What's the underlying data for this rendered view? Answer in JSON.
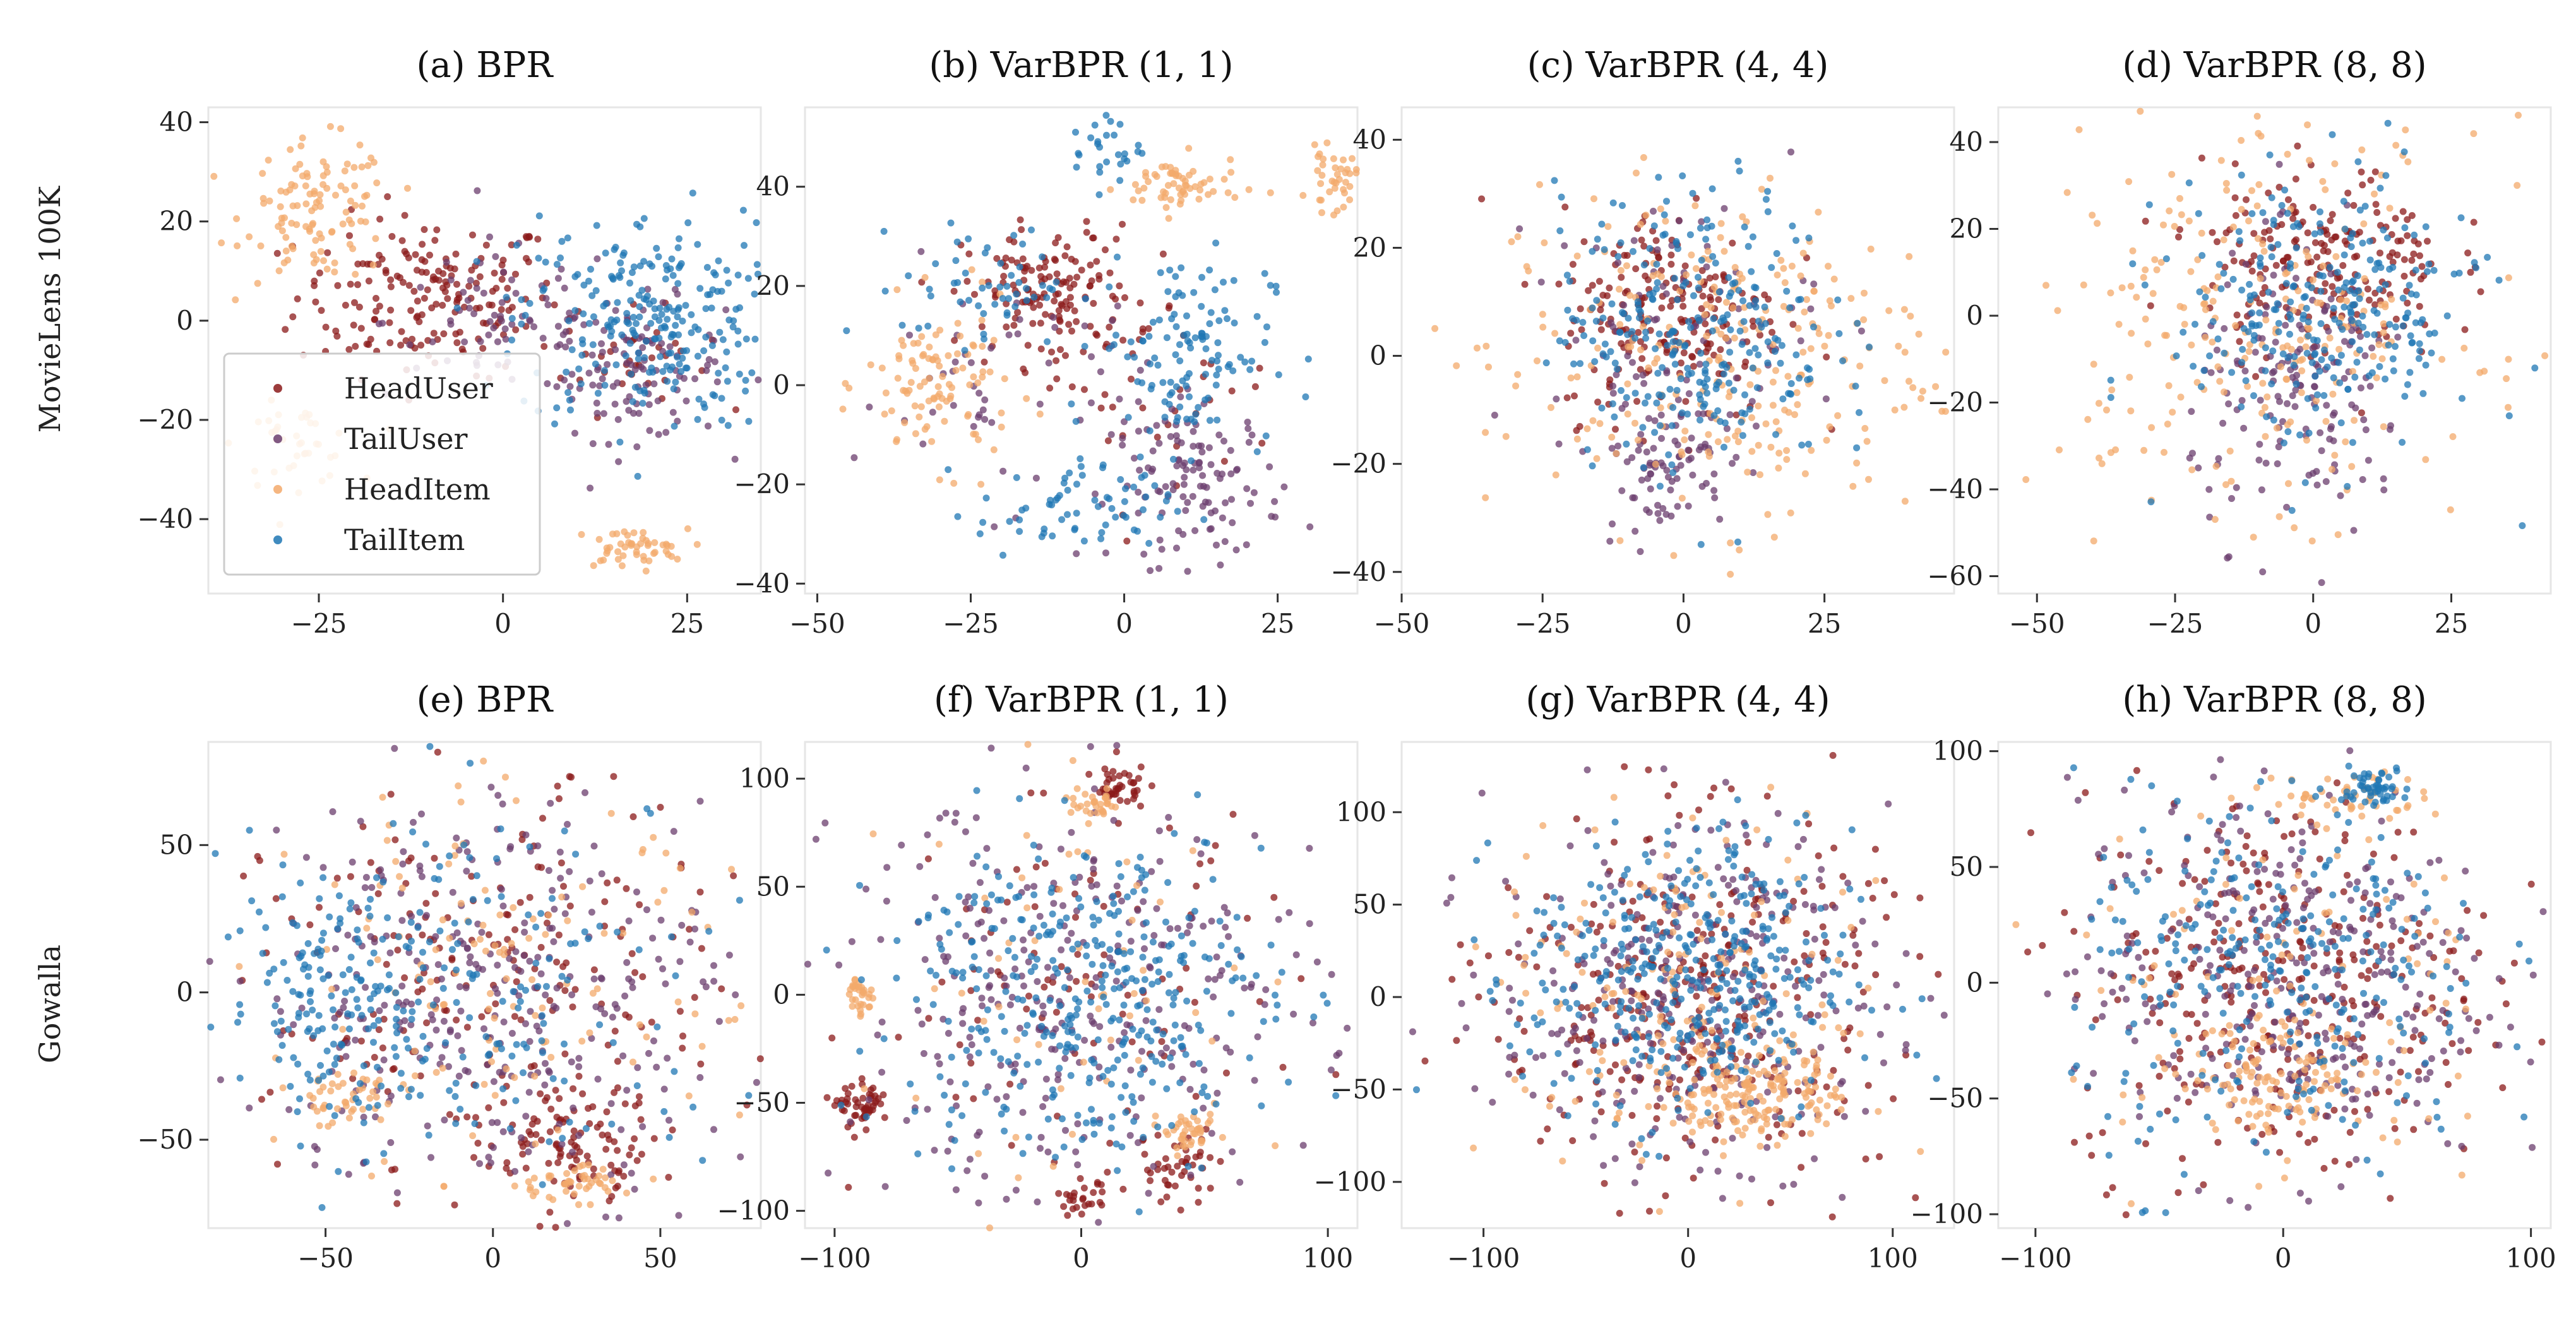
{
  "figure": {
    "row_labels": [
      "MovieLens 100K",
      "Gowalla"
    ],
    "legend": {
      "location": "lower left of panel (a)",
      "entries": [
        {
          "name": "HeadUser",
          "color": "#8b1a1a"
        },
        {
          "name": "TailUser",
          "color": "#6b3d6e"
        },
        {
          "name": "HeadItem",
          "color": "#f3a96b"
        },
        {
          "name": "TailItem",
          "color": "#1f77b4"
        }
      ]
    }
  },
  "chart_data": [
    {
      "type": "scatter",
      "title": "(a) BPR",
      "row": "MovieLens 100K",
      "xlim": [
        -40,
        35
      ],
      "ylim": [
        -55,
        43
      ],
      "xticks": [
        -25,
        0,
        25
      ],
      "yticks": [
        -40,
        -20,
        0,
        20,
        40
      ],
      "series": [
        {
          "name": "HeadUser",
          "color": "#8b1a1a",
          "n": 220,
          "clusters": [
            {
              "cx": -10,
              "cy": 5,
              "sx": 9,
              "sy": 8,
              "w": 0.85
            },
            {
              "cx": 18,
              "cy": -8,
              "sx": 5,
              "sy": 5,
              "w": 0.15
            }
          ]
        },
        {
          "name": "TailUser",
          "color": "#6b3d6e",
          "n": 170,
          "clusters": [
            {
              "cx": 18,
              "cy": -10,
              "sx": 6,
              "sy": 7,
              "w": 0.6
            },
            {
              "cx": 0,
              "cy": 0,
              "sx": 8,
              "sy": 8,
              "w": 0.4
            }
          ]
        },
        {
          "name": "HeadItem",
          "color": "#f3a96b",
          "n": 200,
          "clusters": [
            {
              "cx": -25,
              "cy": 22,
              "sx": 5,
              "sy": 7,
              "w": 0.55
            },
            {
              "cx": -28,
              "cy": -25,
              "sx": 4,
              "sy": 4,
              "w": 0.2
            },
            {
              "cx": 17,
              "cy": -46,
              "sx": 4,
              "sy": 2,
              "w": 0.25
            }
          ]
        },
        {
          "name": "TailItem",
          "color": "#1f77b4",
          "n": 260,
          "clusters": [
            {
              "cx": 20,
              "cy": 0,
              "sx": 9,
              "sy": 11,
              "w": 1.0
            }
          ]
        }
      ]
    },
    {
      "type": "scatter",
      "title": "(b) VarBPR (1, 1)",
      "row": "MovieLens 100K",
      "xlim": [
        -52,
        38
      ],
      "ylim": [
        -42,
        56
      ],
      "xticks": [
        -50,
        -25,
        0,
        25
      ],
      "yticks": [
        -40,
        -20,
        0,
        20,
        40
      ],
      "series": [
        {
          "name": "HeadUser",
          "color": "#8b1a1a",
          "n": 180,
          "clusters": [
            {
              "cx": -12,
              "cy": 18,
              "sx": 7,
              "sy": 7,
              "w": 0.8
            },
            {
              "cx": 5,
              "cy": 0,
              "sx": 10,
              "sy": 10,
              "w": 0.2
            }
          ]
        },
        {
          "name": "TailUser",
          "color": "#6b3d6e",
          "n": 170,
          "clusters": [
            {
              "cx": 12,
              "cy": -20,
              "sx": 7,
              "sy": 8,
              "w": 0.7
            },
            {
              "cx": -20,
              "cy": 0,
              "sx": 12,
              "sy": 12,
              "w": 0.3
            }
          ]
        },
        {
          "name": "HeadItem",
          "color": "#f3a96b",
          "n": 200,
          "clusters": [
            {
              "cx": -30,
              "cy": 0,
              "sx": 6,
              "sy": 8,
              "w": 0.5
            },
            {
              "cx": 9,
              "cy": 40,
              "sx": 5,
              "sy": 3,
              "w": 0.3
            },
            {
              "cx": 34,
              "cy": 41,
              "sx": 2,
              "sy": 3,
              "w": 0.2
            }
          ]
        },
        {
          "name": "TailItem",
          "color": "#1f77b4",
          "n": 270,
          "clusters": [
            {
              "cx": 10,
              "cy": 8,
              "sx": 7,
              "sy": 10,
              "w": 0.45
            },
            {
              "cx": -8,
              "cy": -25,
              "sx": 8,
              "sy": 5,
              "w": 0.25
            },
            {
              "cx": -22,
              "cy": 20,
              "sx": 7,
              "sy": 6,
              "w": 0.2
            },
            {
              "cx": -3,
              "cy": 48,
              "sx": 3,
              "sy": 4,
              "w": 0.1
            }
          ]
        }
      ]
    },
    {
      "type": "scatter",
      "title": "(c) VarBPR (4, 4)",
      "row": "MovieLens 100K",
      "xlim": [
        -50,
        48
      ],
      "ylim": [
        -44,
        46
      ],
      "xticks": [
        -50,
        -25,
        0,
        25
      ],
      "yticks": [
        -40,
        -20,
        0,
        20,
        40
      ],
      "series": [
        {
          "name": "HeadUser",
          "color": "#8b1a1a",
          "n": 200,
          "clusters": [
            {
              "cx": -2,
              "cy": 8,
              "sx": 10,
              "sy": 10,
              "w": 1.0
            }
          ]
        },
        {
          "name": "TailUser",
          "color": "#6b3d6e",
          "n": 160,
          "clusters": [
            {
              "cx": -4,
              "cy": -20,
              "sx": 6,
              "sy": 6,
              "w": 0.5
            },
            {
              "cx": 0,
              "cy": 5,
              "sx": 12,
              "sy": 12,
              "w": 0.5
            }
          ]
        },
        {
          "name": "HeadItem",
          "color": "#f3a96b",
          "n": 260,
          "clusters": [
            {
              "cx": 5,
              "cy": 0,
              "sx": 20,
              "sy": 16,
              "w": 1.0
            }
          ]
        },
        {
          "name": "TailItem",
          "color": "#1f77b4",
          "n": 260,
          "clusters": [
            {
              "cx": 2,
              "cy": 5,
              "sx": 12,
              "sy": 13,
              "w": 1.0
            }
          ]
        }
      ]
    },
    {
      "type": "scatter",
      "title": "(d) VarBPR (8, 8)",
      "row": "MovieLens 100K",
      "xlim": [
        -57,
        43
      ],
      "ylim": [
        -64,
        48
      ],
      "xticks": [
        -50,
        -25,
        0,
        25
      ],
      "yticks": [
        -60,
        -40,
        -20,
        0,
        20,
        40
      ],
      "series": [
        {
          "name": "HeadUser",
          "color": "#8b1a1a",
          "n": 200,
          "clusters": [
            {
              "cx": 2,
              "cy": 12,
              "sx": 11,
              "sy": 11,
              "w": 1.0
            }
          ]
        },
        {
          "name": "TailUser",
          "color": "#6b3d6e",
          "n": 160,
          "clusters": [
            {
              "cx": -2,
              "cy": -18,
              "sx": 10,
              "sy": 16,
              "w": 1.0
            }
          ]
        },
        {
          "name": "HeadItem",
          "color": "#f3a96b",
          "n": 240,
          "clusters": [
            {
              "cx": -10,
              "cy": 0,
              "sx": 20,
              "sy": 22,
              "w": 1.0
            }
          ]
        },
        {
          "name": "TailItem",
          "color": "#1f77b4",
          "n": 260,
          "clusters": [
            {
              "cx": 2,
              "cy": 0,
              "sx": 14,
              "sy": 16,
              "w": 1.0
            }
          ]
        }
      ]
    },
    {
      "type": "scatter",
      "title": "(e) BPR",
      "row": "Gowalla",
      "xlim": [
        -85,
        80
      ],
      "ylim": [
        -80,
        85
      ],
      "xticks": [
        -50,
        0,
        50
      ],
      "yticks": [
        -50,
        0,
        50
      ],
      "series": [
        {
          "name": "HeadUser",
          "color": "#8b1a1a",
          "n": 300,
          "clusters": [
            {
              "cx": 0,
              "cy": 0,
              "sx": 33,
              "sy": 33,
              "w": 0.7
            },
            {
              "cx": 25,
              "cy": -50,
              "sx": 12,
              "sy": 9,
              "w": 0.3
            }
          ]
        },
        {
          "name": "TailUser",
          "color": "#6b3d6e",
          "n": 320,
          "clusters": [
            {
              "cx": 0,
              "cy": 0,
              "sx": 35,
              "sy": 35,
              "w": 1.0
            }
          ]
        },
        {
          "name": "HeadItem",
          "color": "#f3a96b",
          "n": 220,
          "clusters": [
            {
              "cx": -45,
              "cy": -35,
              "sx": 9,
              "sy": 5,
              "w": 0.2
            },
            {
              "cx": 22,
              "cy": -65,
              "sx": 9,
              "sy": 3,
              "w": 0.2
            },
            {
              "cx": 0,
              "cy": 0,
              "sx": 35,
              "sy": 35,
              "w": 0.6
            }
          ]
        },
        {
          "name": "TailItem",
          "color": "#1f77b4",
          "n": 300,
          "clusters": [
            {
              "cx": -45,
              "cy": 0,
              "sx": 18,
              "sy": 22,
              "w": 0.5
            },
            {
              "cx": 0,
              "cy": 0,
              "sx": 35,
              "sy": 35,
              "w": 0.5
            }
          ]
        }
      ]
    },
    {
      "type": "scatter",
      "title": "(f) VarBPR (1, 1)",
      "row": "Gowalla",
      "xlim": [
        -112,
        112
      ],
      "ylim": [
        -108,
        117
      ],
      "xticks": [
        -100,
        0,
        100
      ],
      "yticks": [
        -100,
        -50,
        0,
        50,
        100
      ],
      "series": [
        {
          "name": "HeadUser",
          "color": "#8b1a1a",
          "n": 260,
          "clusters": [
            {
              "cx": -88,
              "cy": -52,
              "sx": 5,
              "sy": 5,
              "w": 0.2
            },
            {
              "cx": 15,
              "cy": 97,
              "sx": 5,
              "sy": 4,
              "w": 0.15
            },
            {
              "cx": 40,
              "cy": -80,
              "sx": 8,
              "sy": 8,
              "w": 0.15
            },
            {
              "cx": 0,
              "cy": -95,
              "sx": 5,
              "sy": 4,
              "w": 0.1
            },
            {
              "cx": 0,
              "cy": 0,
              "sx": 45,
              "sy": 45,
              "w": 0.4
            }
          ]
        },
        {
          "name": "TailUser",
          "color": "#6b3d6e",
          "n": 300,
          "clusters": [
            {
              "cx": 0,
              "cy": 0,
              "sx": 48,
              "sy": 48,
              "w": 1.0
            }
          ]
        },
        {
          "name": "HeadItem",
          "color": "#f3a96b",
          "n": 160,
          "clusters": [
            {
              "cx": -90,
              "cy": 0,
              "sx": 3,
              "sy": 5,
              "w": 0.2
            },
            {
              "cx": 45,
              "cy": -65,
              "sx": 5,
              "sy": 4,
              "w": 0.25
            },
            {
              "cx": 5,
              "cy": 88,
              "sx": 6,
              "sy": 3,
              "w": 0.2
            },
            {
              "cx": 0,
              "cy": 0,
              "sx": 45,
              "sy": 45,
              "w": 0.35
            }
          ]
        },
        {
          "name": "TailItem",
          "color": "#1f77b4",
          "n": 360,
          "clusters": [
            {
              "cx": 0,
              "cy": 0,
              "sx": 38,
              "sy": 40,
              "w": 1.0
            }
          ]
        }
      ]
    },
    {
      "type": "scatter",
      "title": "(g) VarBPR (4, 4)",
      "row": "Gowalla",
      "xlim": [
        -140,
        130
      ],
      "ylim": [
        -125,
        138
      ],
      "xticks": [
        -100,
        0,
        100
      ],
      "yticks": [
        -100,
        -50,
        0,
        50,
        100
      ],
      "series": [
        {
          "name": "HeadUser",
          "color": "#8b1a1a",
          "n": 330,
          "clusters": [
            {
              "cx": 0,
              "cy": 0,
              "sx": 48,
              "sy": 48,
              "w": 1.0
            }
          ]
        },
        {
          "name": "TailUser",
          "color": "#6b3d6e",
          "n": 320,
          "clusters": [
            {
              "cx": 0,
              "cy": 0,
              "sx": 48,
              "sy": 48,
              "w": 1.0
            }
          ]
        },
        {
          "name": "HeadItem",
          "color": "#f3a96b",
          "n": 320,
          "clusters": [
            {
              "cx": 35,
              "cy": -50,
              "sx": 20,
              "sy": 14,
              "w": 0.5
            },
            {
              "cx": 0,
              "cy": 0,
              "sx": 48,
              "sy": 48,
              "w": 0.5
            }
          ]
        },
        {
          "name": "TailItem",
          "color": "#1f77b4",
          "n": 380,
          "clusters": [
            {
              "cx": 0,
              "cy": 10,
              "sx": 40,
              "sy": 40,
              "w": 1.0
            }
          ]
        }
      ]
    },
    {
      "type": "scatter",
      "title": "(h) VarBPR (8, 8)",
      "row": "Gowalla",
      "xlim": [
        -115,
        108
      ],
      "ylim": [
        -106,
        104
      ],
      "xticks": [
        -100,
        0,
        100
      ],
      "yticks": [
        -100,
        -50,
        0,
        50,
        100
      ],
      "series": [
        {
          "name": "HeadUser",
          "color": "#8b1a1a",
          "n": 330,
          "clusters": [
            {
              "cx": 0,
              "cy": 0,
              "sx": 42,
              "sy": 42,
              "w": 1.0
            }
          ]
        },
        {
          "name": "TailUser",
          "color": "#6b3d6e",
          "n": 320,
          "clusters": [
            {
              "cx": 0,
              "cy": 0,
              "sx": 42,
              "sy": 42,
              "w": 1.0
            }
          ]
        },
        {
          "name": "HeadItem",
          "color": "#f3a96b",
          "n": 260,
          "clusters": [
            {
              "cx": 0,
              "cy": -40,
              "sx": 18,
              "sy": 12,
              "w": 0.4
            },
            {
              "cx": 25,
              "cy": 80,
              "sx": 15,
              "sy": 6,
              "w": 0.2
            },
            {
              "cx": 0,
              "cy": 0,
              "sx": 45,
              "sy": 45,
              "w": 0.4
            }
          ]
        },
        {
          "name": "TailItem",
          "color": "#1f77b4",
          "n": 340,
          "clusters": [
            {
              "cx": 0,
              "cy": 0,
              "sx": 42,
              "sy": 42,
              "w": 0.85
            },
            {
              "cx": 35,
              "cy": 85,
              "sx": 8,
              "sy": 4,
              "w": 0.15
            }
          ]
        }
      ]
    }
  ]
}
